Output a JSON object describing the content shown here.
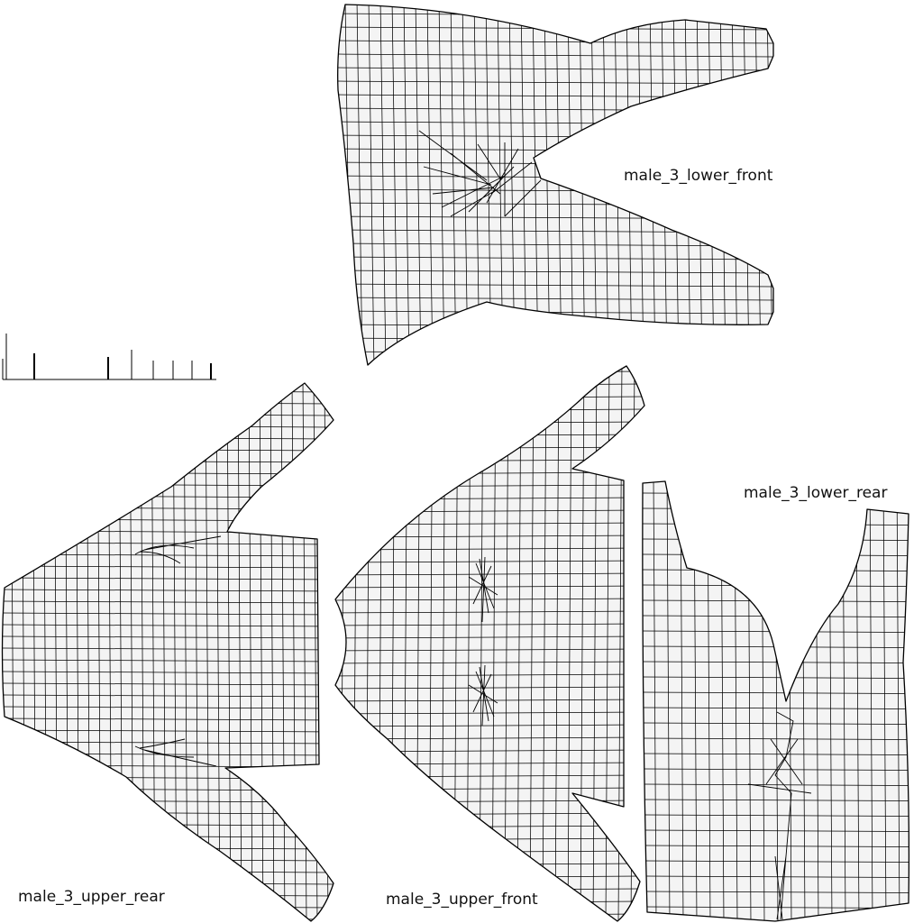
{
  "layout_title": "",
  "patterns": [
    {
      "key": "lower_front",
      "label": "male_3_lower_front"
    },
    {
      "key": "lower_rear",
      "label": "male_3_lower_rear"
    },
    {
      "key": "upper_rear",
      "label": "male_3_upper_rear"
    },
    {
      "key": "upper_front",
      "label": "male_3_upper_front"
    }
  ],
  "colors": {
    "fill": "#f4f4f4",
    "stroke": "#000000",
    "background": "#ffffff"
  }
}
